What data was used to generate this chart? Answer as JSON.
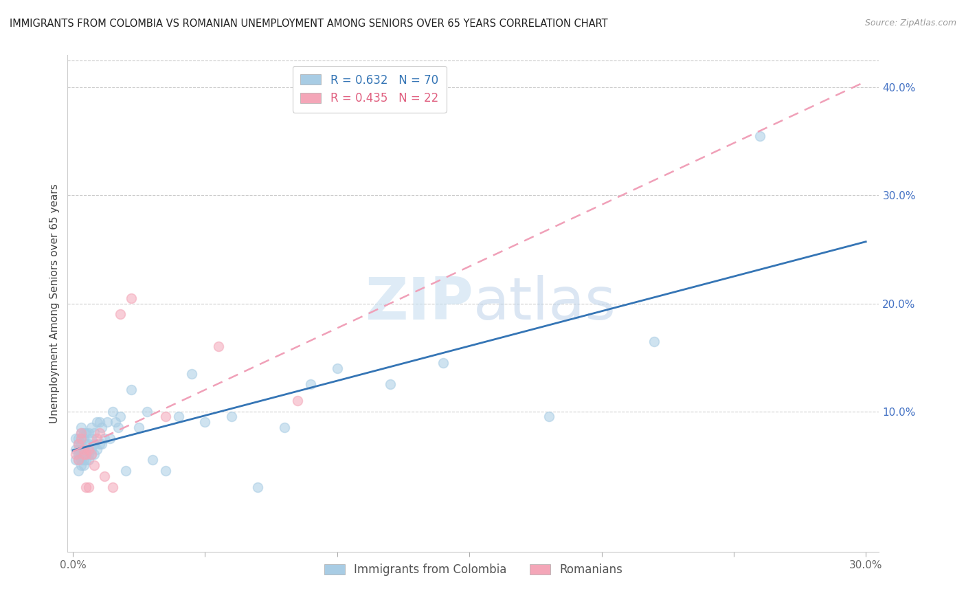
{
  "title": "IMMIGRANTS FROM COLOMBIA VS ROMANIAN UNEMPLOYMENT AMONG SENIORS OVER 65 YEARS CORRELATION CHART",
  "source": "Source: ZipAtlas.com",
  "ylabel": "Unemployment Among Seniors over 65 years",
  "xlim": [
    -0.002,
    0.305
  ],
  "ylim": [
    -0.03,
    0.43
  ],
  "right_yticks": [
    0.1,
    0.2,
    0.3,
    0.4
  ],
  "right_ytick_labels": [
    "10.0%",
    "20.0%",
    "30.0%",
    "40.0%"
  ],
  "colombia_R": 0.632,
  "colombia_N": 70,
  "romania_R": 0.435,
  "romania_N": 22,
  "colombia_color": "#a8cce4",
  "romania_color": "#f4a6b8",
  "colombia_line_color": "#3575b5",
  "romania_line_color": "#f0a0b8",
  "watermark_color": "#dde8f0",
  "background_color": "#ffffff",
  "scatter_alpha": 0.55,
  "scatter_size": 100,
  "colombia_x": [
    0.001,
    0.001,
    0.001,
    0.002,
    0.002,
    0.002,
    0.002,
    0.002,
    0.002,
    0.003,
    0.003,
    0.003,
    0.003,
    0.003,
    0.003,
    0.003,
    0.003,
    0.004,
    0.004,
    0.004,
    0.004,
    0.004,
    0.004,
    0.005,
    0.005,
    0.005,
    0.005,
    0.006,
    0.006,
    0.006,
    0.006,
    0.007,
    0.007,
    0.007,
    0.007,
    0.008,
    0.008,
    0.008,
    0.009,
    0.009,
    0.01,
    0.01,
    0.011,
    0.011,
    0.012,
    0.013,
    0.014,
    0.015,
    0.016,
    0.017,
    0.018,
    0.02,
    0.022,
    0.025,
    0.028,
    0.03,
    0.035,
    0.04,
    0.045,
    0.05,
    0.06,
    0.07,
    0.08,
    0.09,
    0.1,
    0.12,
    0.14,
    0.18,
    0.22,
    0.26
  ],
  "colombia_y": [
    0.055,
    0.065,
    0.075,
    0.045,
    0.055,
    0.06,
    0.065,
    0.07,
    0.075,
    0.05,
    0.055,
    0.06,
    0.065,
    0.07,
    0.075,
    0.08,
    0.085,
    0.05,
    0.055,
    0.06,
    0.065,
    0.075,
    0.08,
    0.055,
    0.06,
    0.07,
    0.08,
    0.055,
    0.06,
    0.07,
    0.08,
    0.06,
    0.065,
    0.075,
    0.085,
    0.06,
    0.07,
    0.08,
    0.065,
    0.09,
    0.07,
    0.09,
    0.07,
    0.085,
    0.075,
    0.09,
    0.075,
    0.1,
    0.09,
    0.085,
    0.095,
    0.045,
    0.12,
    0.085,
    0.1,
    0.055,
    0.045,
    0.095,
    0.135,
    0.09,
    0.095,
    0.03,
    0.085,
    0.125,
    0.14,
    0.125,
    0.145,
    0.095,
    0.165,
    0.355
  ],
  "romania_x": [
    0.001,
    0.002,
    0.002,
    0.003,
    0.003,
    0.004,
    0.004,
    0.005,
    0.005,
    0.006,
    0.006,
    0.007,
    0.008,
    0.009,
    0.01,
    0.012,
    0.015,
    0.018,
    0.022,
    0.035,
    0.055,
    0.085
  ],
  "romania_y": [
    0.06,
    0.055,
    0.07,
    0.075,
    0.08,
    0.06,
    0.065,
    0.06,
    0.03,
    0.065,
    0.03,
    0.06,
    0.05,
    0.075,
    0.08,
    0.04,
    0.03,
    0.19,
    0.205,
    0.095,
    0.16,
    0.11
  ],
  "xtick_positions": [
    0.0,
    0.05,
    0.1,
    0.15,
    0.2,
    0.25,
    0.3
  ],
  "xtick_show": [
    true,
    false,
    false,
    false,
    false,
    false,
    true
  ],
  "xtick_minor_positions": [
    0.05,
    0.1,
    0.15,
    0.2,
    0.25
  ]
}
